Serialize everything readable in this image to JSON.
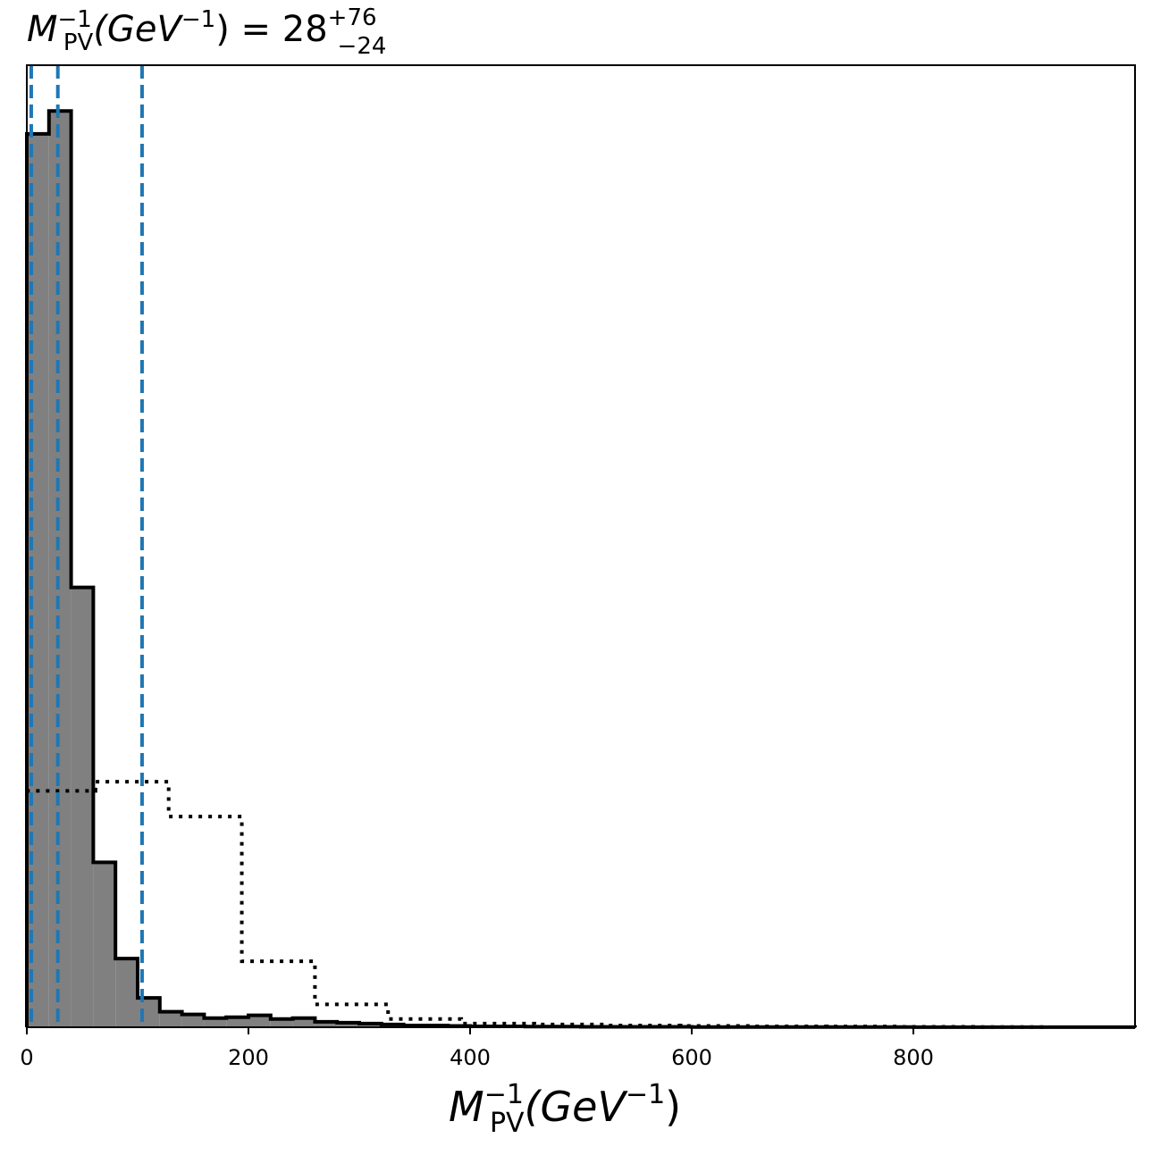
{
  "title": {
    "symbol": "M",
    "sup": "−1",
    "sub": "PV",
    "unit_open": "(GeV",
    "unit_sup": "−1",
    "unit_close": ")",
    "equals": " = 28",
    "err_plus": "+76",
    "err_minus": "−24"
  },
  "xlabel": {
    "symbol": "M",
    "sup": "−1",
    "sub": "PV",
    "unit_open": "(GeV",
    "unit_sup": "−1",
    "unit_close": ")"
  },
  "chart_data": {
    "type": "histogram",
    "xlim": [
      0,
      1000
    ],
    "ylim": [
      0,
      1.05
    ],
    "x_ticks": [
      0,
      200,
      400,
      600,
      800
    ],
    "x_tick_labels": [
      "0",
      "200",
      "400",
      "600",
      "800"
    ],
    "y_ticks_shown": false,
    "posterior": {
      "style": "filled step, gray fill, black edge",
      "fill_color": "#808080",
      "edge_color": "#000000",
      "bin_edges": [
        0,
        20,
        40,
        60,
        80,
        100,
        120,
        140,
        160,
        180,
        200,
        220,
        240,
        260,
        280,
        300,
        320,
        340,
        360,
        380,
        400,
        450,
        500,
        600,
        700,
        800,
        1000
      ],
      "heights": [
        0.975,
        1.0,
        0.48,
        0.18,
        0.075,
        0.032,
        0.017,
        0.014,
        0.01,
        0.011,
        0.013,
        0.009,
        0.01,
        0.006,
        0.005,
        0.004,
        0.003,
        0.002,
        0.002,
        0.0015,
        0.001,
        0.0007,
        0.0005,
        0.0003,
        0.0002,
        0.0001
      ]
    },
    "prior": {
      "style": "dotted step",
      "edge_color": "#000000",
      "bin_edges": [
        0,
        62,
        128,
        194,
        260,
        326,
        392,
        458,
        524,
        590,
        656,
        722,
        788,
        854,
        920
      ],
      "heights": [
        0.258,
        0.268,
        0.23,
        0.072,
        0.025,
        0.009,
        0.004,
        0.003,
        0.002,
        0.0015,
        0.001,
        0.0008,
        0.0005,
        0.0003
      ]
    },
    "credible_lines": {
      "style": "dashed vertical",
      "color": "#1f77b4",
      "values": [
        4,
        28,
        104
      ]
    }
  }
}
